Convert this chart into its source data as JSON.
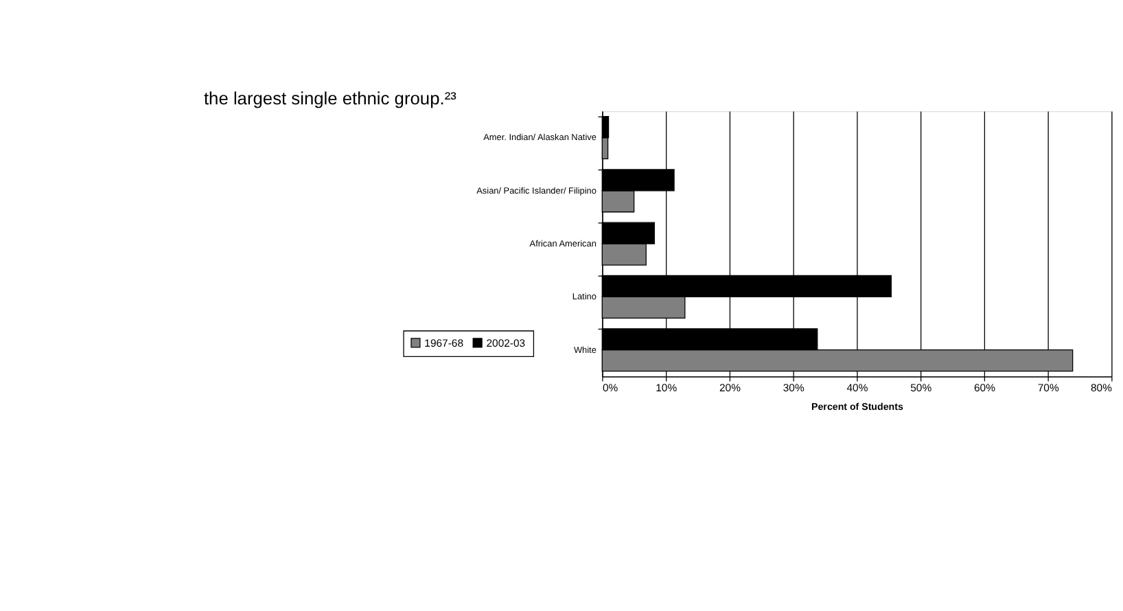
{
  "chart_data": {
    "type": "bar",
    "orientation": "horizontal",
    "annotations": [
      "the largest single ethnic group.²³"
    ],
    "xlabel": "Percent of Students",
    "categories": [
      "Amer. Indian/ Alaskan Native",
      "Asian/ Pacific Islander/ Filipino",
      "African American",
      "Latino",
      "White"
    ],
    "series": [
      {
        "name": "1967-68",
        "color": "#808080",
        "values": [
          0.9,
          5.0,
          6.9,
          13.0,
          73.9
        ]
      },
      {
        "name": "2002-03",
        "color": "#000000",
        "values": [
          1.0,
          11.3,
          8.2,
          45.4,
          33.8
        ]
      }
    ],
    "xlim": [
      0,
      80
    ],
    "xticks": [
      {
        "value": 0,
        "label": "0%"
      },
      {
        "value": 10,
        "label": "10%"
      },
      {
        "value": 20,
        "label": "20%"
      },
      {
        "value": 30,
        "label": "30%"
      },
      {
        "value": 40,
        "label": "40%"
      },
      {
        "value": 50,
        "label": "50%"
      },
      {
        "value": 60,
        "label": "60%"
      },
      {
        "value": 70,
        "label": "70%"
      },
      {
        "value": 80,
        "label": "80%"
      }
    ],
    "grid": "x",
    "legend": "bottom left"
  }
}
